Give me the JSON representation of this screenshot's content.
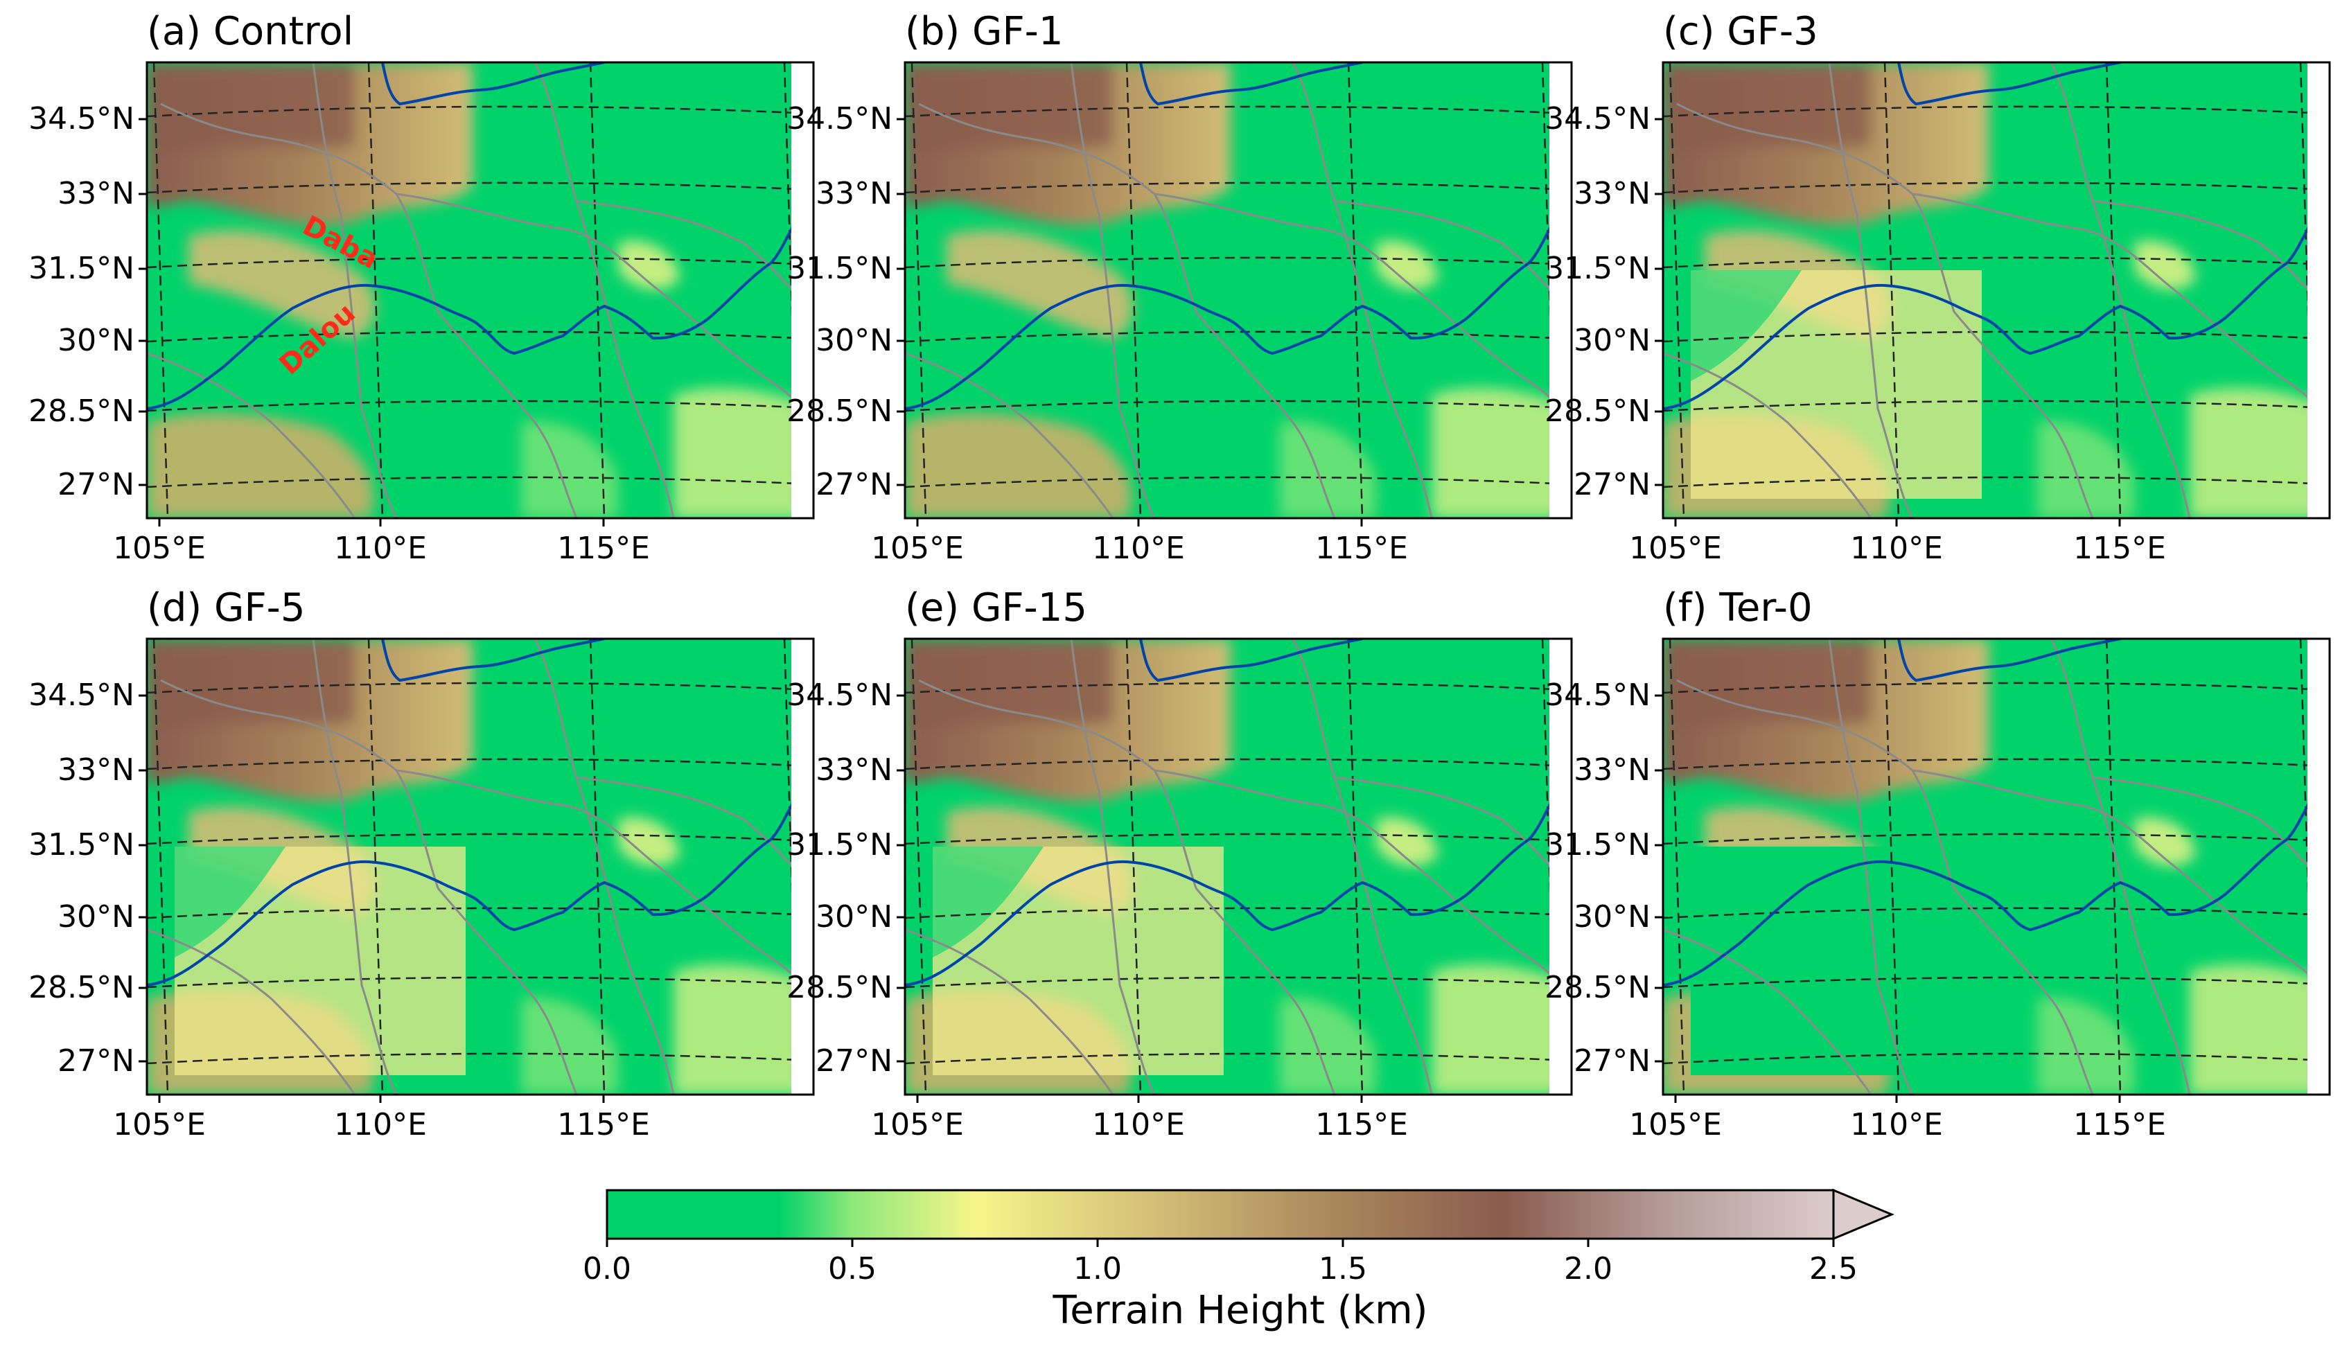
{
  "figure": {
    "panels": [
      {
        "id": "control",
        "title": "(a) Control",
        "annotations": [
          "Daba",
          "Dalou"
        ]
      },
      {
        "id": "gf1",
        "title": "(b) GF-1"
      },
      {
        "id": "gf3",
        "title": "(c) GF-3"
      },
      {
        "id": "gf5",
        "title": "(d) GF-5"
      },
      {
        "id": "gf15",
        "title": "(e) GF-15"
      },
      {
        "id": "ter0",
        "title": "(f) Ter-0"
      }
    ],
    "lat_ticks": [
      "34.5°N",
      "33°N",
      "31.5°N",
      "30°N",
      "28.5°N",
      "27°N"
    ],
    "lon_ticks": [
      "105°E",
      "110°E",
      "115°E"
    ],
    "colorbar": {
      "label": "Terrain Height (km)",
      "ticks": [
        "0.0",
        "0.5",
        "1.0",
        "1.5",
        "2.0",
        "2.5"
      ],
      "min": 0.0,
      "max": 2.5,
      "extend": "max",
      "colors": [
        "#00d26a",
        "#8ee87a",
        "#f6f58a",
        "#d2bd76",
        "#a7855a",
        "#8a5c4e",
        "#b39a96",
        "#dccccc"
      ]
    },
    "colors": {
      "lowland": "#00d26a",
      "rivers": "#0044aa",
      "borders": "#8a8a8a",
      "gridlines": "#222222",
      "annotation": "#ff2a1a"
    }
  }
}
